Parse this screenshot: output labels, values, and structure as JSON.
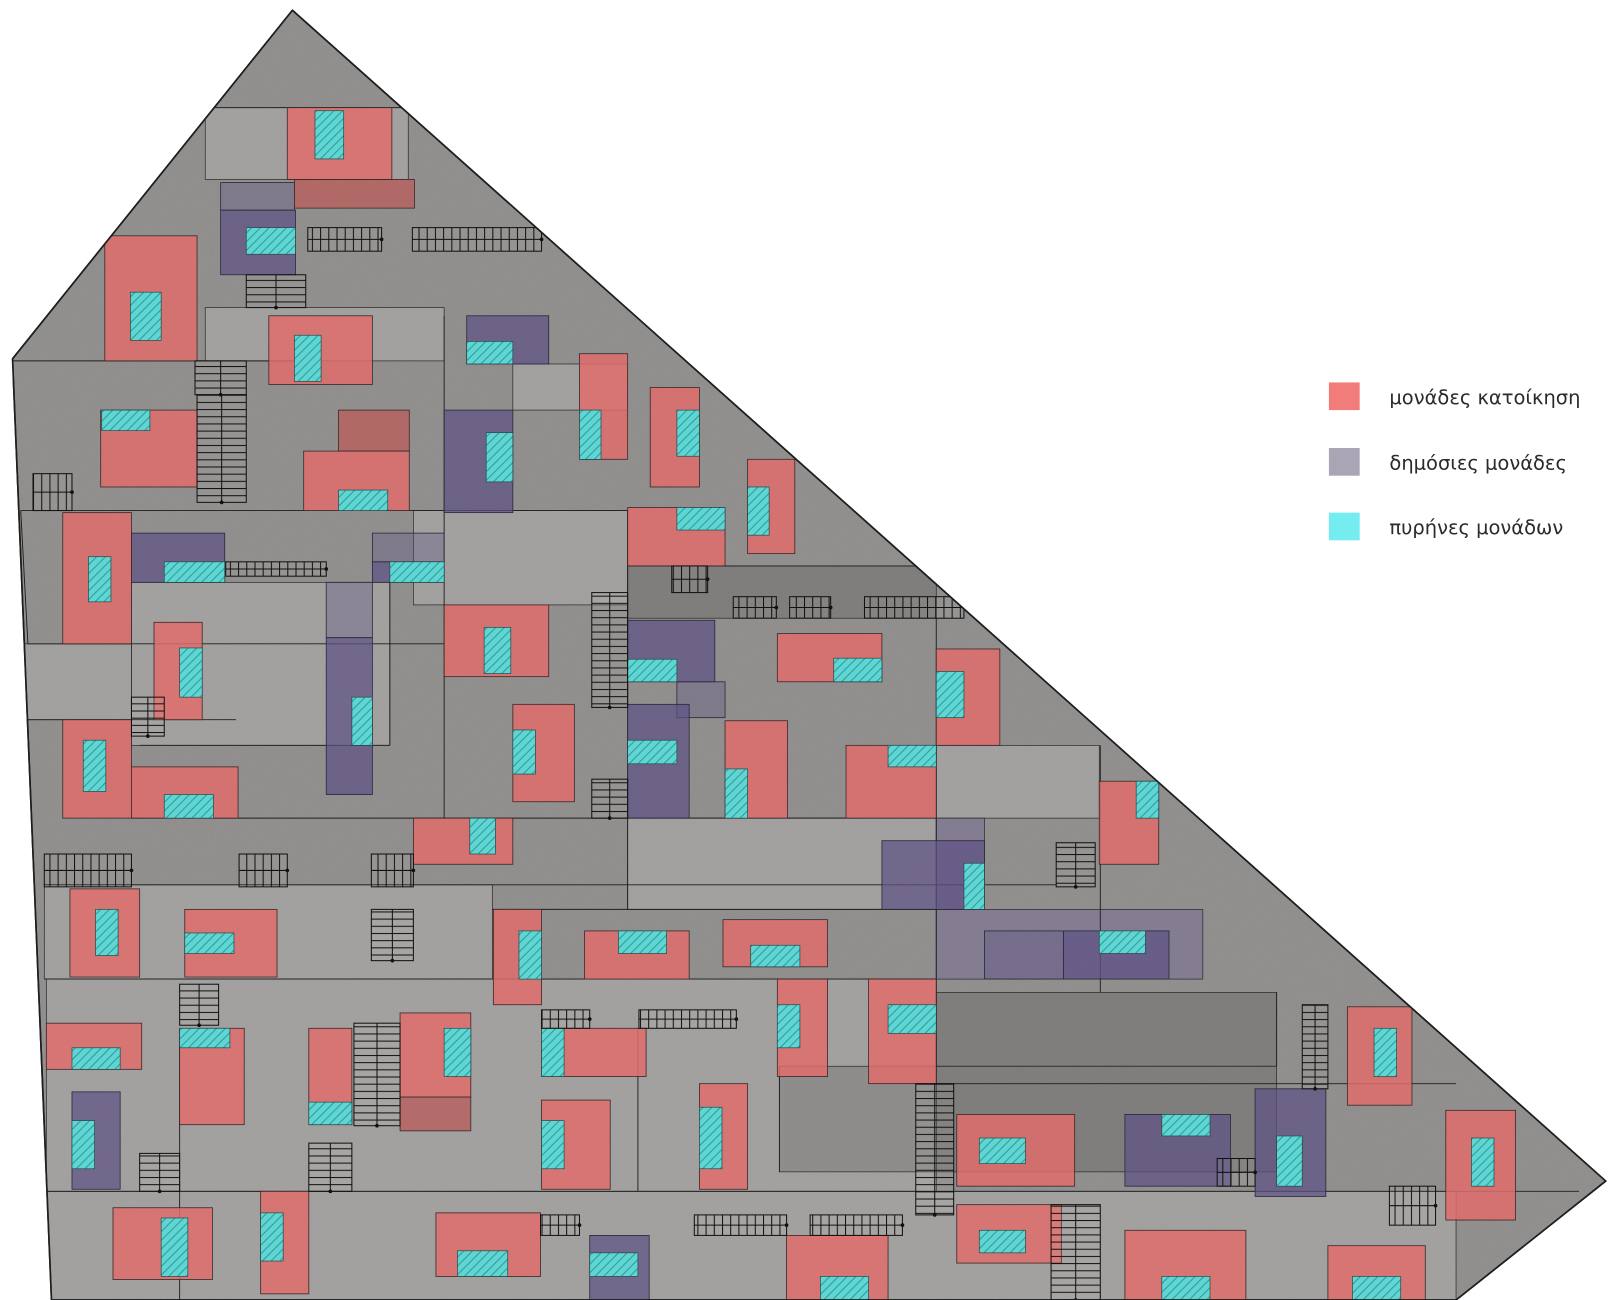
{
  "legend": [
    {
      "label": "μονάδες κατοίκηση",
      "color": "#f27c7a"
    },
    {
      "label": "δημόσιες μονάδες",
      "color": "#a9a5b4"
    },
    {
      "label": "πυρήνες μονάδων",
      "color": "#74ecf0"
    }
  ],
  "colors": {
    "residential_unit": "#e06c6a",
    "public_unit": "#5e5285",
    "unit_core": "#5fd6d3",
    "unit_core_hatch": "#2f9a98",
    "site_fill": "#8c8a88",
    "outline": "#1e1e1e"
  }
}
